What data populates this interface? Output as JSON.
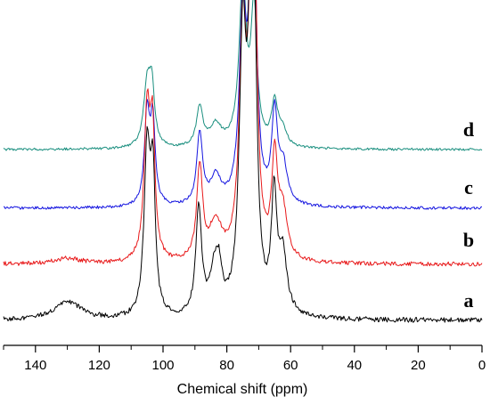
{
  "chart_data": {
    "type": "line",
    "title": "",
    "xlabel": "Chemical shift (ppm)",
    "ylabel": "",
    "xlim": [
      150,
      0
    ],
    "x_reversed": true,
    "grid": false,
    "ticks": [
      "140",
      "120",
      "100",
      "80",
      "60",
      "40",
      "20",
      "0"
    ],
    "tick_values": [
      140,
      120,
      100,
      80,
      60,
      40,
      20,
      0
    ],
    "axis_color": "#000000",
    "peaks_ppm": [
      104.5,
      88.5,
      83.5,
      74.5,
      71.5,
      65
    ],
    "series": [
      {
        "name": "a",
        "color": "#000000",
        "offset": 0,
        "noise": 1.4,
        "peaks": [
          {
            "ppm": 130,
            "h": 0.07,
            "w": 5
          },
          {
            "ppm": 105,
            "h": 0.62,
            "w": 1.1
          },
          {
            "ppm": 103.2,
            "h": 0.5,
            "w": 0.9
          },
          {
            "ppm": 88.8,
            "h": 0.4,
            "w": 1.1
          },
          {
            "ppm": 84,
            "h": 0.14,
            "w": 1.6
          },
          {
            "ppm": 82.5,
            "h": 0.14,
            "w": 1.2
          },
          {
            "ppm": 75,
            "h": 1.0,
            "w": 1.3
          },
          {
            "ppm": 72.5,
            "h": 0.85,
            "w": 1.0
          },
          {
            "ppm": 71.5,
            "h": 0.9,
            "w": 1.1
          },
          {
            "ppm": 65.2,
            "h": 0.42,
            "w": 1.0
          },
          {
            "ppm": 62.5,
            "h": 0.22,
            "w": 1.6
          }
        ]
      },
      {
        "name": "b",
        "color": "#e8191a",
        "offset": 0.21,
        "noise": 1.2,
        "peaks": [
          {
            "ppm": 130,
            "h": 0.02,
            "w": 5
          },
          {
            "ppm": 105,
            "h": 0.55,
            "w": 1.1
          },
          {
            "ppm": 103.3,
            "h": 0.45,
            "w": 0.9
          },
          {
            "ppm": 88.5,
            "h": 0.35,
            "w": 1.1
          },
          {
            "ppm": 83.5,
            "h": 0.14,
            "w": 2.2
          },
          {
            "ppm": 75,
            "h": 0.85,
            "w": 1.3
          },
          {
            "ppm": 72.5,
            "h": 0.7,
            "w": 1.0
          },
          {
            "ppm": 71.2,
            "h": 0.85,
            "w": 1.0
          },
          {
            "ppm": 65,
            "h": 0.36,
            "w": 1.1
          },
          {
            "ppm": 62.5,
            "h": 0.18,
            "w": 1.6
          }
        ]
      },
      {
        "name": "c",
        "color": "#1515e0",
        "offset": 0.42,
        "noise": 0.8,
        "peaks": [
          {
            "ppm": 105,
            "h": 0.34,
            "w": 1.0
          },
          {
            "ppm": 103.2,
            "h": 0.3,
            "w": 0.9
          },
          {
            "ppm": 88.5,
            "h": 0.27,
            "w": 1.1
          },
          {
            "ppm": 83.5,
            "h": 0.1,
            "w": 2.0
          },
          {
            "ppm": 75,
            "h": 0.7,
            "w": 1.3
          },
          {
            "ppm": 72.5,
            "h": 0.55,
            "w": 1.0
          },
          {
            "ppm": 71.3,
            "h": 0.7,
            "w": 1.0
          },
          {
            "ppm": 65,
            "h": 0.33,
            "w": 1.1
          },
          {
            "ppm": 62.3,
            "h": 0.14,
            "w": 1.5
          }
        ]
      },
      {
        "name": "d",
        "color": "#1a8f7f",
        "offset": 0.64,
        "noise": 0.7,
        "peaks": [
          {
            "ppm": 105,
            "h": 0.23,
            "w": 1.3
          },
          {
            "ppm": 103.5,
            "h": 0.2,
            "w": 1.0
          },
          {
            "ppm": 88.5,
            "h": 0.15,
            "w": 1.2
          },
          {
            "ppm": 83.5,
            "h": 0.08,
            "w": 2.2
          },
          {
            "ppm": 75,
            "h": 0.6,
            "w": 1.4
          },
          {
            "ppm": 71.5,
            "h": 0.5,
            "w": 1.1
          },
          {
            "ppm": 65,
            "h": 0.16,
            "w": 1.2
          },
          {
            "ppm": 62.5,
            "h": 0.06,
            "w": 1.5
          }
        ]
      }
    ]
  }
}
